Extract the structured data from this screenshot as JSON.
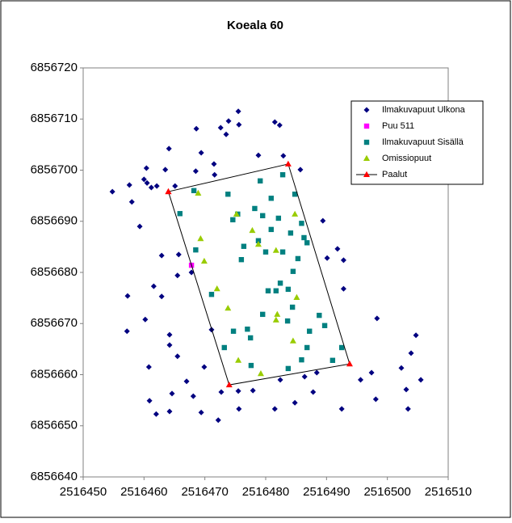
{
  "chart_data": {
    "type": "scatter",
    "title": "Koeala 60",
    "xlim": [
      2516450,
      2516510
    ],
    "xticks": [
      2516450,
      2516460,
      2516470,
      2516480,
      2516490,
      2516500,
      2516510
    ],
    "ylim": [
      6856640,
      6856720
    ],
    "yticks": [
      6856640,
      6856650,
      6856660,
      6856670,
      6856680,
      6856690,
      6856700,
      6856710,
      6856720
    ],
    "grid": false,
    "legend": "right",
    "series": [
      {
        "name": "Ilmakuvapuut Ulkona",
        "color": "#000080",
        "marker": "diamond",
        "x": [
          2516454.8,
          2516457.6,
          2516458.0,
          2516460.5,
          2516461.2,
          2516462.1,
          2516460.0,
          2516460.4,
          2516464.1,
          2516463.5,
          2516465.1,
          2516468.6,
          2516469.4,
          2516468.5,
          2516472.6,
          2516471.5,
          2516471.6,
          2516473.5,
          2516473.9,
          2516475.5,
          2516475.6,
          2516478.8,
          2516481.5,
          2516482.3,
          2516482.9,
          2516485.7,
          2516489.4,
          2516491.8,
          2516490.1,
          2516492.8,
          2516492.8,
          2516459.3,
          2516457.3,
          2516457.2,
          2516461.6,
          2516460.2,
          2516462.9,
          2516462.9,
          2516465.7,
          2516465.5,
          2516467.8,
          2516460.8,
          2516460.9,
          2516462.0,
          2516464.2,
          2516464.2,
          2516465.5,
          2516464.2,
          2516464.6,
          2516467.0,
          2516468.1,
          2516469.4,
          2516469.9,
          2516471.1,
          2516472.2,
          2516472.7,
          2516475.5,
          2516475.6,
          2516477.9,
          2516481.5,
          2516482.4,
          2516484.8,
          2516486.4,
          2516487.8,
          2516488.4,
          2516492.5,
          2516495.6,
          2516497.4,
          2516498.3,
          2516498.1,
          2516502.3,
          2516503.1,
          2516503.4,
          2516503.9,
          2516504.7,
          2516505.5
        ],
        "values": [
          6856695.8,
          6856697.1,
          6856693.8,
          6856697.5,
          6856696.6,
          6856696.9,
          6856698.2,
          6856700.4,
          6856704.2,
          6856700.1,
          6856696.9,
          6856708.1,
          6856703.4,
          6856699.8,
          6856708.3,
          6856701.2,
          6856699.1,
          6856707.0,
          6856709.6,
          6856711.5,
          6856708.9,
          6856702.9,
          6856709.4,
          6856708.8,
          6856702.8,
          6856700.1,
          6856690.1,
          6856684.6,
          6856682.8,
          6856682.4,
          6856676.8,
          6856689.0,
          6856675.4,
          6856668.5,
          6856677.3,
          6856670.8,
          6856675.3,
          6856683.3,
          6856683.5,
          6856679.4,
          6856680.0,
          6856661.5,
          6856654.9,
          6856652.3,
          6856667.8,
          6856665.8,
          6856663.6,
          6856652.8,
          6856656.3,
          6856658.7,
          6856655.8,
          6856652.6,
          6856661.5,
          6856668.8,
          6856651.1,
          6856656.6,
          6856656.8,
          6856653.3,
          6856656.9,
          6856653.3,
          6856659.0,
          6856654.5,
          6856659.6,
          6856656.6,
          6856660.4,
          6856653.3,
          6856659.0,
          6856660.4,
          6856671.0,
          6856655.2,
          6856661.3,
          6856657.1,
          6856653.3,
          6856664.2,
          6856667.7,
          6856659.0
        ]
      },
      {
        "name": "Puu 511",
        "color": "#ff00ff",
        "marker": "square",
        "x": [
          2516467.8
        ],
        "values": [
          6856681.4
        ]
      },
      {
        "name": "Ilmakuvapuut Sisällä",
        "color": "#008080",
        "marker": "square",
        "x": [
          2516468.2,
          2516465.9,
          2516473.8,
          2516474.6,
          2516475.4,
          2516478.2,
          2516479.5,
          2516479.1,
          2516480.9,
          2516482.1,
          2516482.8,
          2516484.8,
          2516484.1,
          2516485.9,
          2516486.3,
          2516486.8,
          2516485.3,
          2516484.5,
          2516482.8,
          2516482.4,
          2516481.7,
          2516483.7,
          2516484.4,
          2516476.0,
          2516476.4,
          2516478.8,
          2516480.9,
          2516480.0,
          2516480.4,
          2516471.1,
          2516468.5,
          2516479.5,
          2516477.0,
          2516477.5,
          2516474.7,
          2516473.2,
          2516477.6,
          2516483.7,
          2516485.9,
          2516487.2,
          2516483.6,
          2516488.8,
          2516489.7,
          2516486.8,
          2516491.0,
          2516492.5
        ],
        "values": [
          6856696.0,
          6856691.5,
          6856695.3,
          6856690.3,
          6856691.4,
          6856692.5,
          6856691.1,
          6856697.9,
          6856694.5,
          6856690.6,
          6856699.1,
          6856695.3,
          6856687.7,
          6856689.6,
          6856686.8,
          6856685.8,
          6856682.7,
          6856680.2,
          6856684.0,
          6856677.9,
          6856676.4,
          6856676.7,
          6856673.2,
          6856682.5,
          6856685.1,
          6856686.2,
          6856688.4,
          6856684.0,
          6856676.4,
          6856675.7,
          6856684.4,
          6856671.8,
          6856668.9,
          6856667.2,
          6856668.5,
          6856665.3,
          6856661.8,
          6856661.2,
          6856662.9,
          6856668.5,
          6856670.5,
          6856671.6,
          6856669.6,
          6856665.3,
          6856662.8,
          6856665.3
        ]
      },
      {
        "name": "Omissiopuut",
        "color": "#99cc00",
        "marker": "triangle",
        "x": [
          2516468.9,
          2516475.2,
          2516484.8,
          2516469.3,
          2516469.9,
          2516477.8,
          2516478.8,
          2516481.7,
          2516472.0,
          2516473.8,
          2516485.1,
          2516481.9,
          2516481.7,
          2516484.5,
          2516475.5,
          2516479.2
        ],
        "values": [
          6856695.5,
          6856691.4,
          6856691.4,
          6856686.6,
          6856682.2,
          6856688.2,
          6856685.5,
          6856684.3,
          6856676.8,
          6856673.0,
          6856675.1,
          6856671.8,
          6856670.7,
          6856666.6,
          6856662.8,
          6856660.2
        ]
      },
      {
        "name": "Paalut",
        "color": "#ff0000",
        "marker": "triangle",
        "line": true,
        "line_color": "#000000",
        "x": [
          2516464.0,
          2516483.7,
          2516493.8,
          2516474.0,
          2516464.0
        ],
        "values": [
          6856695.8,
          6856701.2,
          6856662.1,
          6856658.0,
          6856695.8
        ]
      }
    ]
  }
}
